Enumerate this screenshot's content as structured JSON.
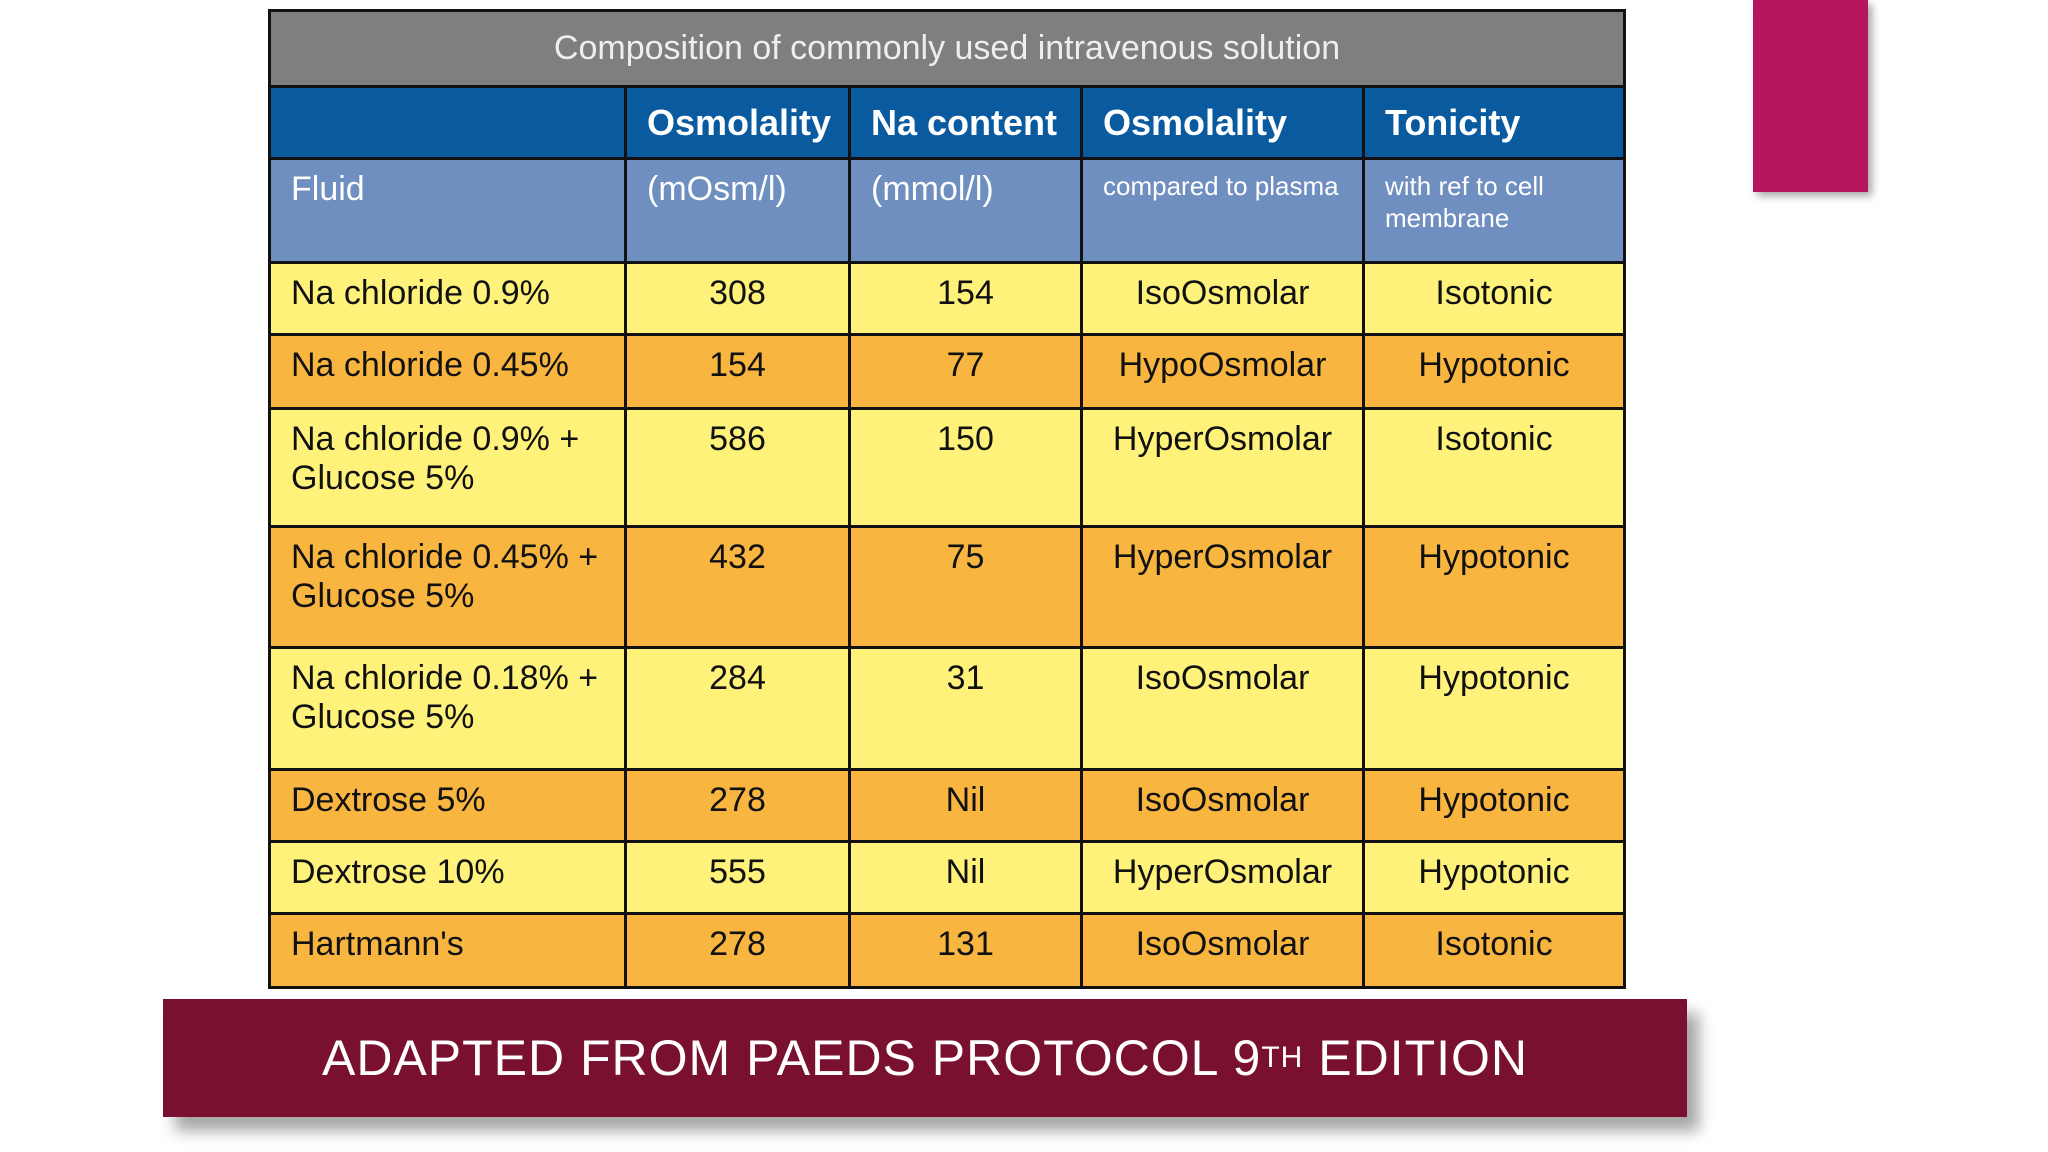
{
  "table": {
    "title": "Composition of commonly used intravenous solution",
    "header_top": [
      "",
      "Osmolality",
      "Na content",
      "Osmolality",
      "Tonicity"
    ],
    "header_sub": [
      "Fluid",
      "(mOsm/l)",
      "(mmol/l)",
      "compared to plasma",
      "with ref to cell membrane"
    ],
    "rows": [
      [
        "Na chloride 0.9%",
        "308",
        "154",
        "IsoOsmolar",
        "Isotonic"
      ],
      [
        "Na chloride 0.45%",
        "154",
        "77",
        "HypoOsmolar",
        "Hypotonic"
      ],
      [
        "Na chloride 0.9% + Glucose 5%",
        "586",
        "150",
        "HyperOsmolar",
        "Isotonic"
      ],
      [
        "Na chloride 0.45% + Glucose 5%",
        "432",
        "75",
        "HyperOsmolar",
        "Hypotonic"
      ],
      [
        "Na chloride 0.18% + Glucose 5%",
        "284",
        "31",
        "IsoOsmolar",
        "Hypotonic"
      ],
      [
        "Dextrose 5%",
        "278",
        "Nil",
        "IsoOsmolar",
        "Hypotonic"
      ],
      [
        "Dextrose 10%",
        "555",
        "Nil",
        "HyperOsmolar",
        "Hypotonic"
      ],
      [
        "Hartmann's",
        "278",
        "131",
        "IsoOsmolar",
        "Isotonic"
      ]
    ]
  },
  "caption": {
    "text": "ADAPTED FROM PAEDS PROTOCOL 9",
    "sup": "TH",
    "tail": " EDITION"
  }
}
